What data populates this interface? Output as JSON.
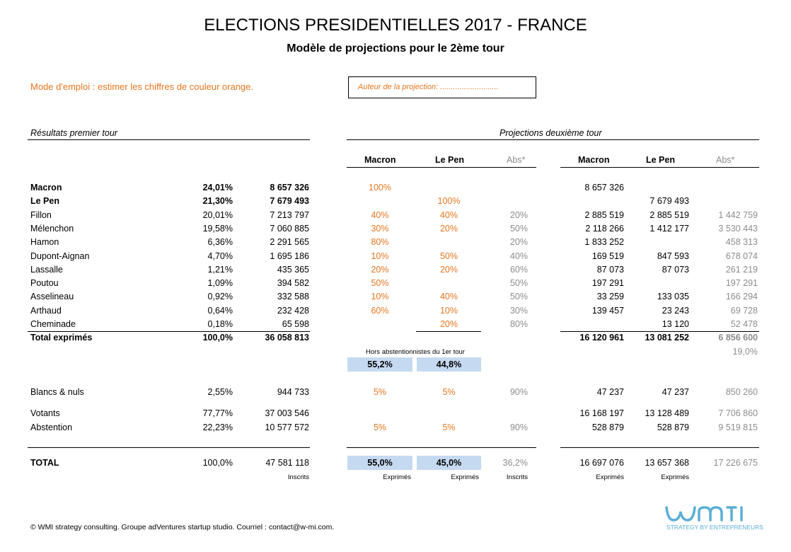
{
  "title": "ELECTIONS PRESIDENTIELLES 2017 - FRANCE",
  "subtitle": "Modèle de projections pour le 2ème tour",
  "mode_emploi": "Mode d'emploi : estimer les chiffres de couleur orange.",
  "author_box": "Auteur de la projection: ...........................",
  "section_first": "Résultats premier tour",
  "section_second": "Projections deuxième tour",
  "headers": {
    "macron": "Macron",
    "lepen": "Le Pen",
    "abs": "Abs*"
  },
  "rows": [
    {
      "name": "Macron",
      "pct": "24,01%",
      "votes": "8 657 326",
      "pm": "100%",
      "pl": "",
      "pa": "",
      "vm": "8 657 326",
      "vl": "",
      "va": ""
    },
    {
      "name": "Le Pen",
      "pct": "21,30%",
      "votes": "7 679 493",
      "pm": "",
      "pl": "100%",
      "pa": "",
      "vm": "",
      "vl": "7 679 493",
      "va": ""
    },
    {
      "name": "Fillon",
      "pct": "20,01%",
      "votes": "7 213 797",
      "pm": "40%",
      "pl": "40%",
      "pa": "20%",
      "vm": "2 885 519",
      "vl": "2 885 519",
      "va": "1 442 759"
    },
    {
      "name": "Mélenchon",
      "pct": "19,58%",
      "votes": "7 060 885",
      "pm": "30%",
      "pl": "20%",
      "pa": "50%",
      "vm": "2 118 266",
      "vl": "1 412 177",
      "va": "3 530 443"
    },
    {
      "name": "Hamon",
      "pct": "6,36%",
      "votes": "2 291 565",
      "pm": "80%",
      "pl": "",
      "pa": "20%",
      "vm": "1 833 252",
      "vl": "",
      "va": "458 313"
    },
    {
      "name": "Dupont-Aignan",
      "pct": "4,70%",
      "votes": "1 695 186",
      "pm": "10%",
      "pl": "50%",
      "pa": "40%",
      "vm": "169 519",
      "vl": "847 593",
      "va": "678 074"
    },
    {
      "name": "Lassalle",
      "pct": "1,21%",
      "votes": "435 365",
      "pm": "20%",
      "pl": "20%",
      "pa": "60%",
      "vm": "87 073",
      "vl": "87 073",
      "va": "261 219"
    },
    {
      "name": "Poutou",
      "pct": "1,09%",
      "votes": "394 582",
      "pm": "50%",
      "pl": "",
      "pa": "50%",
      "vm": "197 291",
      "vl": "",
      "va": "197 291"
    },
    {
      "name": "Asselineau",
      "pct": "0,92%",
      "votes": "332 588",
      "pm": "10%",
      "pl": "40%",
      "pa": "50%",
      "vm": "33 259",
      "vl": "133 035",
      "va": "166 294"
    },
    {
      "name": "Arthaud",
      "pct": "0,64%",
      "votes": "232 428",
      "pm": "60%",
      "pl": "10%",
      "pa": "30%",
      "vm": "139 457",
      "vl": "23 243",
      "va": "69 728"
    },
    {
      "name": "Cheminade",
      "pct": "0,18%",
      "votes": "65 598",
      "pm": "",
      "pl": "20%",
      "pa": "80%",
      "vm": "",
      "vl": "13 120",
      "va": "52 478"
    }
  ],
  "total_exprimes": {
    "name": "Total exprimés",
    "pct": "100,0%",
    "votes": "36 058 813",
    "vm": "16 120 961",
    "vl": "13 081 252",
    "va": "6 856 600",
    "va_pct": "19,0%"
  },
  "hors_note": "Hors abstentionnistes du 1er tour",
  "hors_macron": "55,2%",
  "hors_lepen": "44,8%",
  "blancs": {
    "name": "Blancs & nuls",
    "pct": "2,55%",
    "votes": "944 733",
    "pm": "5%",
    "pl": "5%",
    "pa": "90%",
    "vm": "47 237",
    "vl": "47 237",
    "va": "850 260"
  },
  "votants": {
    "name": "Votants",
    "pct": "77,77%",
    "votes": "37 003 546",
    "vm": "16 168 197",
    "vl": "13 128 489",
    "va": "7 706 860"
  },
  "abstention": {
    "name": "Abstention",
    "pct": "22,23%",
    "votes": "10 577 572",
    "pm": "5%",
    "pl": "5%",
    "pa": "90%",
    "vm": "528 879",
    "vl": "528 879",
    "va": "9 519 815"
  },
  "total": {
    "name": "TOTAL",
    "pct": "100,0%",
    "votes": "47 581 118",
    "pm": "55,0%",
    "pl": "45,0%",
    "pa": "36,2%",
    "vm": "16 697 076",
    "vl": "13 657 368",
    "va": "17 226 675"
  },
  "bottom_labels": {
    "inscrits1": "Inscrits",
    "exp_m": "Exprimés",
    "exp_l": "Exprimés",
    "inscrits2": "Inscrits",
    "exp_m2": "Exprimés",
    "exp_l2": "Exprimés"
  },
  "footer": "© WMI strategy consulting. Groupe adVentures startup studio. Courriel : contact@w-mi.com.",
  "logo": {
    "text": "wmi",
    "tagline": "STRATEGY BY ENTREPRENEURS",
    "color": "#5aaed6"
  }
}
